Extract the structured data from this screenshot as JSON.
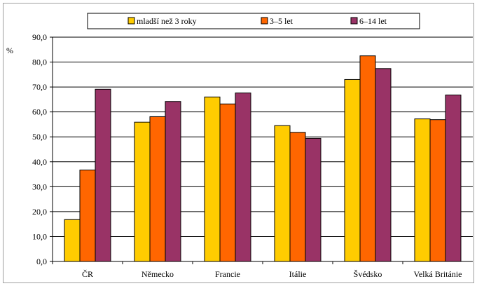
{
  "chart_data": {
    "type": "bar",
    "ylabel": "%",
    "ylim": [
      0,
      90
    ],
    "yticks": [
      "0,0",
      "10,0",
      "20,0",
      "30,0",
      "40,0",
      "50,0",
      "60,0",
      "70,0",
      "80,0",
      "90,0"
    ],
    "grid": true,
    "legend_position": "top",
    "categories": [
      "ČR",
      "Německo",
      "Francie",
      "Itálie",
      "Švédsko",
      "Velká Británie"
    ],
    "series": [
      {
        "name": "mladší než 3 roky",
        "color": "#FFCC00",
        "values": [
          16.8,
          55.9,
          66.0,
          54.5,
          73.0,
          57.2
        ]
      },
      {
        "name": "3–5 let",
        "color": "#FF6600",
        "values": [
          36.7,
          58.1,
          63.2,
          51.8,
          82.5,
          56.9
        ]
      },
      {
        "name": "6–14 let",
        "color": "#993366",
        "values": [
          69.1,
          64.2,
          67.6,
          49.4,
          77.4,
          66.8
        ]
      }
    ]
  }
}
